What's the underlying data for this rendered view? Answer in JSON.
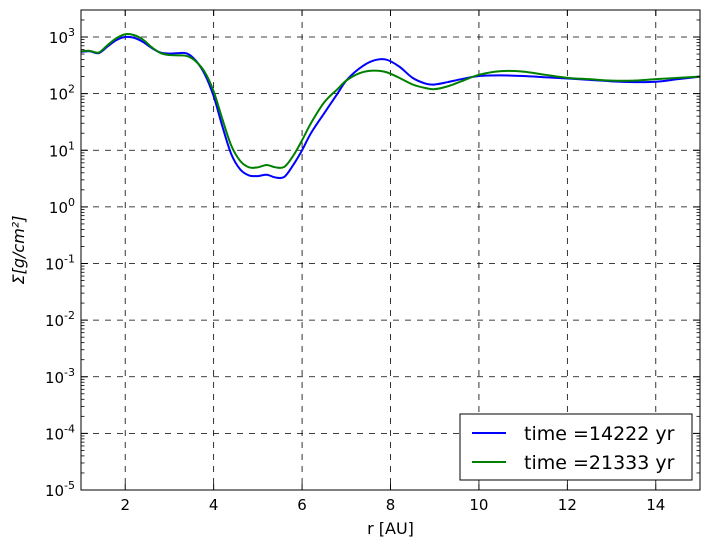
{
  "chart_data": {
    "type": "line",
    "xlabel": "r [AU]",
    "ylabel": "Σ[g/cm²]",
    "xlim": [
      1,
      15
    ],
    "ylim": [
      1e-05,
      3000
    ],
    "yscale": "log",
    "grid": true,
    "legend_position": "bottom-right",
    "x_ticks": [
      2,
      4,
      6,
      8,
      10,
      12,
      14
    ],
    "y_ticks": [
      {
        "value": 1e-05,
        "base": "10",
        "exp": "-5"
      },
      {
        "value": 0.0001,
        "base": "10",
        "exp": "-4"
      },
      {
        "value": 0.001,
        "base": "10",
        "exp": "-3"
      },
      {
        "value": 0.01,
        "base": "10",
        "exp": "-2"
      },
      {
        "value": 0.1,
        "base": "10",
        "exp": "-1"
      },
      {
        "value": 1,
        "base": "10",
        "exp": "0"
      },
      {
        "value": 10,
        "base": "10",
        "exp": "1"
      },
      {
        "value": 100,
        "base": "10",
        "exp": "2"
      },
      {
        "value": 1000,
        "base": "10",
        "exp": "3"
      }
    ],
    "series": [
      {
        "name": "time =14222 yr",
        "color": "#0000ff",
        "x": [
          1.0,
          1.2,
          1.4,
          1.6,
          1.8,
          2.0,
          2.2,
          2.4,
          2.6,
          2.8,
          3.0,
          3.2,
          3.4,
          3.6,
          3.8,
          4.0,
          4.2,
          4.4,
          4.6,
          4.8,
          5.0,
          5.2,
          5.4,
          5.6,
          5.8,
          6.0,
          6.2,
          6.5,
          6.8,
          7.0,
          7.3,
          7.6,
          7.9,
          8.2,
          8.5,
          8.8,
          9.0,
          9.3,
          9.6,
          10.0,
          10.5,
          11.0,
          11.5,
          12.0,
          12.5,
          13.0,
          13.5,
          14.0,
          14.5,
          15.0
        ],
        "y": [
          550,
          560,
          520,
          680,
          880,
          1000,
          970,
          820,
          640,
          530,
          510,
          520,
          510,
          380,
          220,
          90,
          26,
          8.5,
          4.6,
          3.6,
          3.5,
          3.7,
          3.3,
          3.4,
          5.5,
          10,
          20,
          45,
          100,
          170,
          280,
          380,
          400,
          300,
          190,
          150,
          145,
          160,
          180,
          205,
          210,
          205,
          195,
          185,
          175,
          165,
          160,
          162,
          180,
          200
        ]
      },
      {
        "name": "time =21333 yr",
        "color": "#008000",
        "x": [
          1.0,
          1.2,
          1.4,
          1.6,
          1.8,
          2.0,
          2.2,
          2.4,
          2.6,
          2.8,
          3.0,
          3.2,
          3.4,
          3.6,
          3.8,
          4.0,
          4.2,
          4.4,
          4.6,
          4.8,
          5.0,
          5.2,
          5.4,
          5.6,
          5.8,
          6.0,
          6.2,
          6.5,
          6.8,
          7.0,
          7.3,
          7.6,
          7.9,
          8.2,
          8.5,
          8.8,
          9.0,
          9.3,
          9.6,
          10.0,
          10.5,
          11.0,
          11.5,
          12.0,
          12.5,
          13.0,
          13.5,
          14.0,
          14.5,
          15.0
        ],
        "y": [
          560,
          570,
          530,
          720,
          950,
          1120,
          1080,
          900,
          660,
          520,
          480,
          475,
          460,
          370,
          240,
          110,
          35,
          12,
          6.5,
          5.0,
          5.0,
          5.5,
          5.0,
          5.1,
          8,
          15,
          30,
          70,
          120,
          170,
          230,
          255,
          240,
          190,
          145,
          125,
          120,
          135,
          165,
          215,
          250,
          245,
          215,
          190,
          180,
          170,
          170,
          180,
          190,
          200
        ]
      }
    ]
  }
}
